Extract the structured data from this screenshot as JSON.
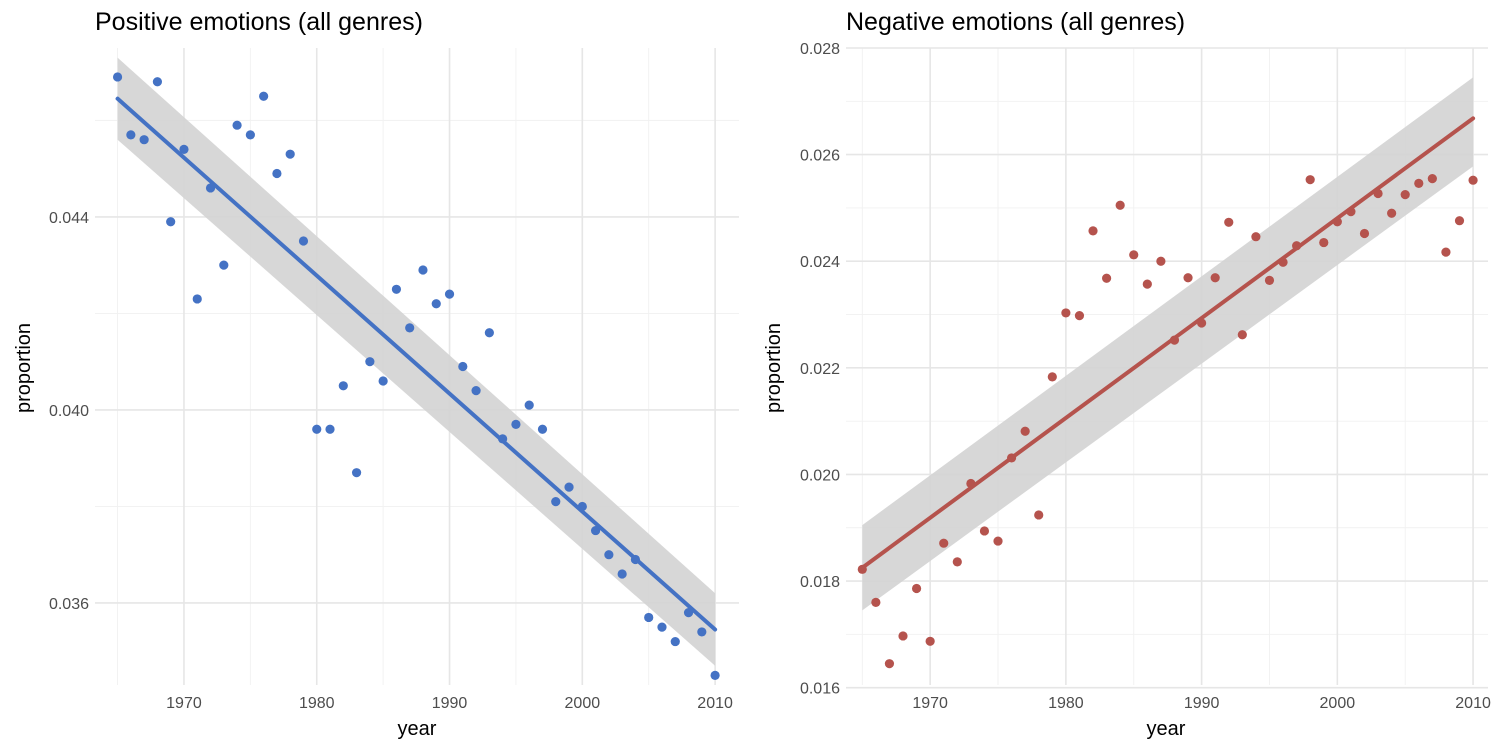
{
  "chart_data": [
    {
      "type": "scatter",
      "title": "Positive emotions (all genres)",
      "xlabel": "year",
      "ylabel": "proportion",
      "xlim": [
        1963.3,
        2011.8
      ],
      "ylim": [
        0.0343,
        0.0475
      ],
      "x_ticks": [
        1970,
        1980,
        1990,
        2000,
        2010
      ],
      "y_ticks": [
        0.036,
        0.04,
        0.044
      ],
      "y_tick_labels": [
        "0.036",
        "0.040",
        "0.044"
      ],
      "grid": true,
      "legend": "none",
      "point_color": "#4472c4",
      "line_color": "#4472c4",
      "band_color": "#d3d3d3",
      "points": {
        "x": [
          1965,
          1966,
          1967,
          1968,
          1969,
          1970,
          1971,
          1972,
          1973,
          1974,
          1975,
          1976,
          1977,
          1978,
          1979,
          1980,
          1981,
          1982,
          1983,
          1984,
          1985,
          1986,
          1987,
          1988,
          1989,
          1990,
          1991,
          1992,
          1993,
          1994,
          1995,
          1996,
          1997,
          1998,
          1999,
          2000,
          2001,
          2002,
          2003,
          2004,
          2005,
          2006,
          2007,
          2008,
          2009,
          2010
        ],
        "y": [
          0.0469,
          0.0457,
          0.0456,
          0.0468,
          0.0439,
          0.0454,
          0.0423,
          0.0446,
          0.043,
          0.0459,
          0.0457,
          0.0465,
          0.0449,
          0.0453,
          0.0435,
          0.0396,
          0.0396,
          0.0405,
          0.0387,
          0.041,
          0.0406,
          0.0425,
          0.0417,
          0.0429,
          0.0422,
          0.0424,
          0.0409,
          0.0404,
          0.0416,
          0.0394,
          0.0397,
          0.0401,
          0.0396,
          0.0381,
          0.0384,
          0.038,
          0.0375,
          0.037,
          0.0366,
          0.0369,
          0.0357,
          0.0355,
          0.0352,
          0.0358,
          0.0354,
          0.0345
        ]
      },
      "fit": {
        "x": [
          1965,
          2010
        ],
        "y": [
          0.04645,
          0.03545
        ],
        "band_lower": [
          0.0456,
          0.0347
        ],
        "band_upper": [
          0.0473,
          0.0362
        ]
      }
    },
    {
      "type": "scatter",
      "title": "Negative emotions (all genres)",
      "xlabel": "year",
      "ylabel": "proportion",
      "xlim": [
        1963.8,
        2011.1
      ],
      "ylim": [
        0.01605,
        0.028
      ],
      "x_ticks": [
        1970,
        1980,
        1990,
        2000,
        2010
      ],
      "y_ticks": [
        0.016,
        0.018,
        0.02,
        0.022,
        0.024,
        0.026,
        0.028
      ],
      "y_tick_labels": [
        "0.016",
        "0.018",
        "0.020",
        "0.022",
        "0.024",
        "0.026",
        "0.028"
      ],
      "grid": true,
      "legend": "none",
      "point_color": "#b5534d",
      "line_color": "#b5534d",
      "band_color": "#d3d3d3",
      "points": {
        "x": [
          1965,
          1966,
          1967,
          1968,
          1969,
          1970,
          1971,
          1972,
          1973,
          1974,
          1975,
          1976,
          1977,
          1978,
          1979,
          1980,
          1981,
          1982,
          1983,
          1984,
          1985,
          1986,
          1987,
          1988,
          1989,
          1990,
          1991,
          1992,
          1993,
          1994,
          1995,
          1996,
          1997,
          1998,
          1999,
          2000,
          2001,
          2002,
          2003,
          2004,
          2005,
          2006,
          2007,
          2008,
          2009,
          2010
        ],
        "y": [
          0.01822,
          0.0176,
          0.01645,
          0.01697,
          0.01786,
          0.01687,
          0.01871,
          0.01836,
          0.01983,
          0.01894,
          0.01875,
          0.02031,
          0.02081,
          0.01924,
          0.02183,
          0.02303,
          0.02298,
          0.02457,
          0.02368,
          0.02505,
          0.02412,
          0.02357,
          0.024,
          0.02252,
          0.02369,
          0.02284,
          0.02369,
          0.02473,
          0.02262,
          0.02446,
          0.02364,
          0.02398,
          0.02429,
          0.02553,
          0.02435,
          0.02474,
          0.02493,
          0.02452,
          0.02527,
          0.0249,
          0.02525,
          0.02546,
          0.02555,
          0.02417,
          0.02476,
          0.02552
        ]
      },
      "fit": {
        "x": [
          1965,
          2010
        ],
        "y": [
          0.01825,
          0.02668
        ],
        "band_lower": [
          0.01745,
          0.02578
        ],
        "band_upper": [
          0.01905,
          0.02745
        ]
      }
    }
  ]
}
